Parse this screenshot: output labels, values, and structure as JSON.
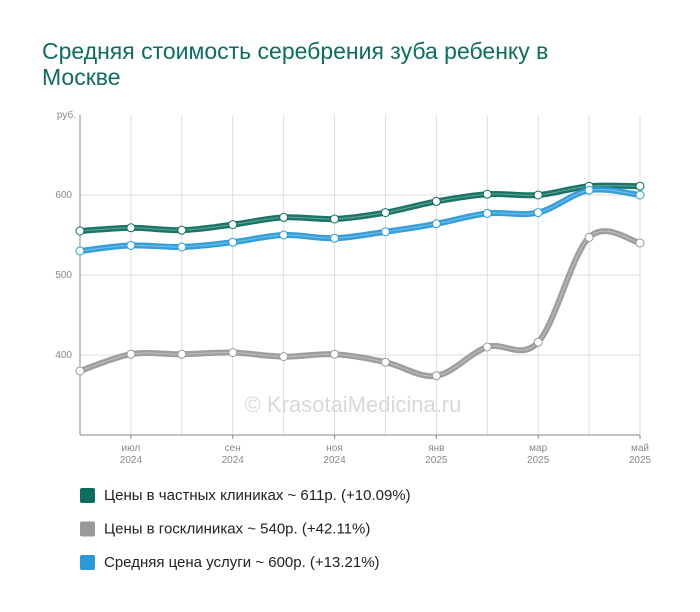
{
  "chart_data": {
    "type": "line",
    "title": "Средняя стоимость серебрения зуба ребенку в Москве",
    "y_label": "руб.",
    "watermark": "© KrasotaiMedicina.ru",
    "categories": [
      null,
      "июл",
      null,
      "сен",
      null,
      "ноя",
      null,
      "янв",
      null,
      "мар",
      null,
      "май"
    ],
    "category_years": [
      null,
      "2024",
      null,
      "2024",
      null,
      "2024",
      null,
      "2025",
      null,
      "2025",
      null,
      "2025"
    ],
    "ylim": [
      300,
      700
    ],
    "yticks": [
      400,
      500,
      600
    ],
    "grid": true,
    "series": [
      {
        "name": "Цены в частных клиниках ~ 611р. (+10.09%)",
        "color": "#0d6e5f",
        "values": [
          555,
          559,
          556,
          563,
          572,
          570,
          578,
          592,
          601,
          600,
          611,
          611
        ]
      },
      {
        "name": "Цены в госклиниках ~ 540р. (+42.11%)",
        "color": "#999999",
        "values": [
          380,
          401,
          401,
          403,
          398,
          401,
          391,
          374,
          410,
          416,
          547,
          540
        ]
      },
      {
        "name": "Средняя цена услуги ~ 600р. (+13.21%)",
        "color": "#2a9ad8",
        "values": [
          530,
          537,
          535,
          541,
          550,
          546,
          554,
          564,
          577,
          578,
          606,
          600
        ]
      }
    ]
  }
}
